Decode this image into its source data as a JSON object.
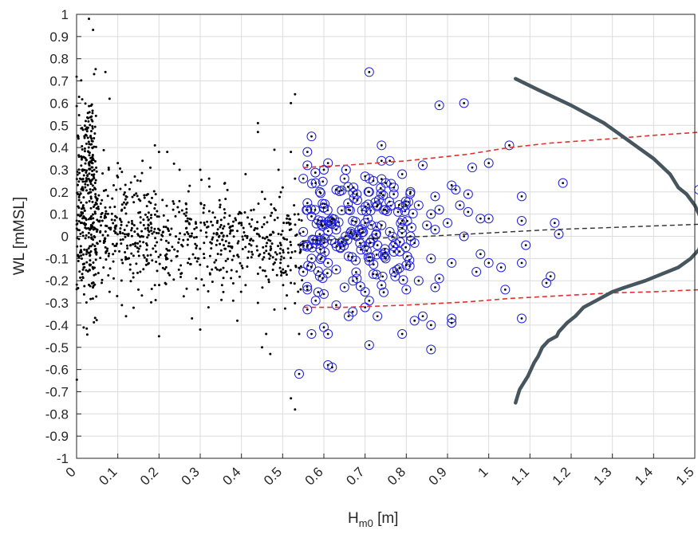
{
  "chart_data": {
    "type": "scatter",
    "title": "",
    "xlabel": {
      "main": "H",
      "subscript": "m0",
      "unit": " [m]"
    },
    "ylabel": "WL [mMSL]",
    "xlim": [
      0,
      1.5
    ],
    "ylim": [
      -1,
      1
    ],
    "grid": true,
    "legend": "none",
    "x_ticks": [
      0,
      0.1,
      0.2,
      0.3,
      0.4,
      0.5,
      0.6,
      0.7,
      0.8,
      0.9,
      1,
      1.1,
      1.2,
      1.3,
      1.4,
      1.5
    ],
    "x_tick_labels": [
      "0",
      "0.1",
      "0.2",
      "0.3",
      "0.4",
      "0.5",
      "0.6",
      "0.7",
      "0.8",
      "0.9",
      "1",
      "1.1",
      "1.2",
      "1.3",
      "1.4",
      "1.5"
    ],
    "y_ticks": [
      1,
      0.9,
      0.8,
      0.7,
      0.6,
      0.5,
      0.4,
      0.3,
      0.2,
      0.1,
      0,
      -0.1,
      -0.2,
      -0.3,
      -0.4,
      -0.5,
      -0.6,
      -0.7,
      -0.8,
      -0.9,
      -1
    ],
    "y_tick_labels": [
      "1",
      "0.9",
      "0.8",
      "0.7",
      "0.6",
      "0.5",
      "0.4",
      "0.3",
      "0.2",
      "0.1",
      "0",
      "-0.1",
      "-0.2",
      "-0.3",
      "-0.4",
      "-0.5",
      "-0.6",
      "-0.7",
      "-0.8",
      "-0.9",
      "-1"
    ],
    "colors": {
      "all_points": "#000000",
      "selected_circles": "#2020d8",
      "bounds": "#e03030",
      "trend": "#303030",
      "density": "#46555e"
    },
    "series": [
      {
        "type": "scatter",
        "role": "all observations (black dots)",
        "points": [
          [
            0.03,
            0.98
          ],
          [
            0.04,
            0.93
          ],
          [
            0.07,
            0.74
          ],
          [
            0.08,
            0.62
          ],
          [
            0.53,
            0.64
          ],
          [
            0.52,
            0.6
          ],
          [
            0.44,
            0.51
          ],
          [
            0.44,
            0.47
          ],
          [
            0.48,
            0.39
          ],
          [
            0.52,
            0.38
          ],
          [
            0.1,
            0.33
          ],
          [
            0.11,
            0.29
          ],
          [
            0.09,
            0.23
          ],
          [
            0.12,
            0.18
          ],
          [
            0.16,
            0.34
          ],
          [
            0.19,
            0.41
          ],
          [
            0.2,
            0.38
          ],
          [
            0.22,
            0.38
          ],
          [
            0.25,
            0.3
          ],
          [
            0.3,
            0.3
          ],
          [
            0.36,
            0.24
          ],
          [
            0.41,
            0.28
          ],
          [
            0.45,
            0.2
          ],
          [
            0.49,
            0.3
          ],
          [
            0.5,
            0.22
          ],
          [
            0.53,
            0.26
          ],
          [
            0.11,
            0.12
          ],
          [
            0.14,
            0.05
          ],
          [
            0.17,
            -0.06
          ],
          [
            0.21,
            0.02
          ],
          [
            0.24,
            0.09
          ],
          [
            0.27,
            -0.12
          ],
          [
            0.33,
            0.05
          ],
          [
            0.37,
            -0.03
          ],
          [
            0.43,
            0.12
          ],
          [
            0.47,
            -0.02
          ],
          [
            0.51,
            0.08
          ],
          [
            0.09,
            -0.19
          ],
          [
            0.13,
            -0.15
          ],
          [
            0.19,
            -0.22
          ],
          [
            0.23,
            -0.11
          ],
          [
            0.29,
            -0.19
          ],
          [
            0.35,
            -0.15
          ],
          [
            0.41,
            -0.22
          ],
          [
            0.46,
            -0.18
          ],
          [
            0.52,
            -0.21
          ],
          [
            0.08,
            -0.25
          ],
          [
            0.11,
            -0.31
          ],
          [
            0.15,
            -0.24
          ],
          [
            0.26,
            -0.27
          ],
          [
            0.32,
            -0.32
          ],
          [
            0.38,
            -0.29
          ],
          [
            0.44,
            -0.3
          ],
          [
            0.48,
            -0.33
          ],
          [
            0.12,
            -0.36
          ],
          [
            0.2,
            -0.45
          ],
          [
            0.28,
            -0.37
          ],
          [
            0.3,
            -0.42
          ],
          [
            0.39,
            -0.38
          ],
          [
            0.46,
            -0.44
          ],
          [
            0.47,
            -0.53
          ],
          [
            0.45,
            -0.5
          ],
          [
            0.52,
            -0.73
          ],
          [
            0.53,
            -0.78
          ],
          [
            0.54,
            -0.44
          ],
          [
            0.06,
            0.1
          ],
          [
            0.07,
            -0.05
          ],
          [
            0.18,
            0.15
          ],
          [
            0.31,
            0.14
          ],
          [
            0.4,
            0.06
          ]
        ]
      },
      {
        "type": "dense_scatter",
        "role": "dense black point cloud",
        "clusters": [
          {
            "x_range": [
              0.0,
              0.05
            ],
            "y_center": 0.12,
            "y_spread": 0.22,
            "count": 300
          },
          {
            "x_range": [
              0.02,
              0.04
            ],
            "y_center": 0.38,
            "y_spread": 0.12,
            "count": 60
          },
          {
            "x_range": [
              0.05,
              0.2
            ],
            "y_center": 0.02,
            "y_spread": 0.12,
            "count": 260
          },
          {
            "x_range": [
              0.2,
              0.4
            ],
            "y_center": -0.02,
            "y_spread": 0.11,
            "count": 240
          },
          {
            "x_range": [
              0.4,
              0.55
            ],
            "y_center": -0.04,
            "y_spread": 0.1,
            "count": 170
          }
        ]
      },
      {
        "type": "scatter",
        "role": "selected peaks (blue circles)",
        "points": [
          [
            0.71,
            0.74
          ],
          [
            0.94,
            0.6
          ],
          [
            0.88,
            0.59
          ],
          [
            0.57,
            0.45
          ],
          [
            0.74,
            0.41
          ],
          [
            0.56,
            0.38
          ],
          [
            1.05,
            0.41
          ],
          [
            0.61,
            0.33
          ],
          [
            0.74,
            0.34
          ],
          [
            0.76,
            0.34
          ],
          [
            0.56,
            0.32
          ],
          [
            0.6,
            0.3
          ],
          [
            0.79,
            0.28
          ],
          [
            0.84,
            0.32
          ],
          [
            0.96,
            0.31
          ],
          [
            1.0,
            0.33
          ],
          [
            0.55,
            0.26
          ],
          [
            0.58,
            0.24
          ],
          [
            0.65,
            0.26
          ],
          [
            0.7,
            0.27
          ],
          [
            0.72,
            0.25
          ],
          [
            0.75,
            0.24
          ],
          [
            0.91,
            0.23
          ],
          [
            0.92,
            0.21
          ],
          [
            1.18,
            0.24
          ],
          [
            1.51,
            0.21
          ],
          [
            0.59,
            0.2
          ],
          [
            0.63,
            0.21
          ],
          [
            0.68,
            0.19
          ],
          [
            0.71,
            0.2
          ],
          [
            0.77,
            0.22
          ],
          [
            0.81,
            0.2
          ],
          [
            0.87,
            0.18
          ],
          [
            0.95,
            0.19
          ],
          [
            1.08,
            0.18
          ],
          [
            0.56,
            0.15
          ],
          [
            0.6,
            0.13
          ],
          [
            0.66,
            0.12
          ],
          [
            0.73,
            0.14
          ],
          [
            0.78,
            0.11
          ],
          [
            0.83,
            0.14
          ],
          [
            0.86,
            0.1
          ],
          [
            0.88,
            0.12
          ],
          [
            0.93,
            0.14
          ],
          [
            0.57,
            0.09
          ],
          [
            0.62,
            0.08
          ],
          [
            0.67,
            0.07
          ],
          [
            0.7,
            0.06
          ],
          [
            0.74,
            0.05
          ],
          [
            0.79,
            0.07
          ],
          [
            0.85,
            0.05
          ],
          [
            0.9,
            0.06
          ],
          [
            0.95,
            0.11
          ],
          [
            0.98,
            0.08
          ],
          [
            1.0,
            0.08
          ],
          [
            1.08,
            0.07
          ],
          [
            1.16,
            0.06
          ],
          [
            0.55,
            0.02
          ],
          [
            0.59,
            0.01
          ],
          [
            0.63,
            0.03
          ],
          [
            0.68,
            0.0
          ],
          [
            0.72,
            -0.01
          ],
          [
            0.76,
            0.02
          ],
          [
            0.81,
            0.0
          ],
          [
            0.87,
            0.03
          ],
          [
            0.94,
            0.0
          ],
          [
            1.17,
            0.01
          ],
          [
            0.56,
            -0.04
          ],
          [
            0.6,
            -0.03
          ],
          [
            0.64,
            -0.05
          ],
          [
            0.69,
            -0.06
          ],
          [
            0.73,
            -0.04
          ],
          [
            0.77,
            -0.07
          ],
          [
            0.82,
            -0.03
          ],
          [
            1.09,
            -0.04
          ],
          [
            0.57,
            -0.1
          ],
          [
            0.61,
            -0.12
          ],
          [
            0.66,
            -0.09
          ],
          [
            0.71,
            -0.11
          ],
          [
            0.75,
            -0.1
          ],
          [
            0.8,
            -0.13
          ],
          [
            0.86,
            -0.1
          ],
          [
            0.91,
            -0.12
          ],
          [
            0.98,
            -0.08
          ],
          [
            1.0,
            -0.12
          ],
          [
            1.03,
            -0.14
          ],
          [
            1.08,
            -0.12
          ],
          [
            0.55,
            -0.16
          ],
          [
            0.59,
            -0.18
          ],
          [
            0.63,
            -0.15
          ],
          [
            0.68,
            -0.19
          ],
          [
            0.72,
            -0.17
          ],
          [
            0.77,
            -0.16
          ],
          [
            0.83,
            -0.2
          ],
          [
            0.88,
            -0.19
          ],
          [
            0.97,
            -0.16
          ],
          [
            1.15,
            -0.18
          ],
          [
            1.14,
            -0.21
          ],
          [
            0.56,
            -0.24
          ],
          [
            0.6,
            -0.26
          ],
          [
            0.65,
            -0.23
          ],
          [
            0.7,
            -0.25
          ],
          [
            0.74,
            -0.22
          ],
          [
            0.8,
            -0.24
          ],
          [
            0.87,
            -0.23
          ],
          [
            1.04,
            -0.24
          ],
          [
            0.58,
            -0.29
          ],
          [
            0.63,
            -0.31
          ],
          [
            0.71,
            -0.29
          ],
          [
            0.67,
            -0.34
          ],
          [
            0.7,
            -0.32
          ],
          [
            0.73,
            -0.36
          ],
          [
            0.56,
            -0.33
          ],
          [
            0.66,
            -0.36
          ],
          [
            0.79,
            -0.44
          ],
          [
            0.82,
            -0.38
          ],
          [
            0.84,
            -0.36
          ],
          [
            0.86,
            -0.4
          ],
          [
            0.91,
            -0.37
          ],
          [
            0.91,
            -0.39
          ],
          [
            1.08,
            -0.37
          ],
          [
            0.57,
            -0.44
          ],
          [
            0.6,
            -0.41
          ],
          [
            0.61,
            -0.44
          ],
          [
            0.71,
            -0.49
          ],
          [
            0.86,
            -0.51
          ],
          [
            0.54,
            -0.62
          ],
          [
            0.61,
            -0.58
          ],
          [
            0.62,
            -0.59
          ]
        ]
      },
      {
        "type": "dense_circles",
        "role": "dense blue circle cluster",
        "clusters": [
          {
            "x_range": [
              0.55,
              0.82
            ],
            "y_center": 0.01,
            "y_spread": 0.13,
            "count": 150
          }
        ]
      },
      {
        "type": "line",
        "role": "upper bound (red dashed)",
        "points": [
          [
            0.55,
            0.31
          ],
          [
            0.65,
            0.32
          ],
          [
            0.8,
            0.34
          ],
          [
            0.95,
            0.37
          ],
          [
            1.05,
            0.4
          ],
          [
            1.15,
            0.42
          ],
          [
            1.3,
            0.44
          ],
          [
            1.4,
            0.455
          ],
          [
            1.52,
            0.47
          ]
        ]
      },
      {
        "type": "line",
        "role": "lower bound (red dashed)",
        "points": [
          [
            0.55,
            -0.32
          ],
          [
            0.65,
            -0.32
          ],
          [
            0.8,
            -0.31
          ],
          [
            0.95,
            -0.295
          ],
          [
            1.05,
            -0.28
          ],
          [
            1.15,
            -0.27
          ],
          [
            1.3,
            -0.255
          ],
          [
            1.4,
            -0.25
          ],
          [
            1.52,
            -0.24
          ]
        ]
      },
      {
        "type": "line",
        "role": "trend (black dashed)",
        "points": [
          [
            0.55,
            -0.02
          ],
          [
            0.7,
            -0.01
          ],
          [
            0.85,
            0.0
          ],
          [
            1.0,
            0.015
          ],
          [
            1.15,
            0.03
          ],
          [
            1.3,
            0.04
          ],
          [
            1.52,
            0.055
          ]
        ]
      },
      {
        "type": "line",
        "role": "density curve (grey)",
        "points": [
          [
            1.065,
            0.71
          ],
          [
            1.12,
            0.66
          ],
          [
            1.2,
            0.59
          ],
          [
            1.28,
            0.51
          ],
          [
            1.34,
            0.43
          ],
          [
            1.4,
            0.35
          ],
          [
            1.44,
            0.28
          ],
          [
            1.46,
            0.22
          ],
          [
            1.48,
            0.19
          ],
          [
            1.5,
            0.14
          ],
          [
            1.515,
            0.08
          ],
          [
            1.52,
            0.03
          ],
          [
            1.52,
            -0.01
          ],
          [
            1.51,
            -0.06
          ],
          [
            1.49,
            -0.1
          ],
          [
            1.46,
            -0.14
          ],
          [
            1.42,
            -0.17
          ],
          [
            1.38,
            -0.2
          ],
          [
            1.33,
            -0.23
          ],
          [
            1.3,
            -0.25
          ],
          [
            1.26,
            -0.29
          ],
          [
            1.23,
            -0.32
          ],
          [
            1.21,
            -0.36
          ],
          [
            1.19,
            -0.39
          ],
          [
            1.17,
            -0.43
          ],
          [
            1.165,
            -0.45
          ],
          [
            1.145,
            -0.47
          ],
          [
            1.13,
            -0.5
          ],
          [
            1.12,
            -0.54
          ],
          [
            1.11,
            -0.57
          ],
          [
            1.1,
            -0.61
          ],
          [
            1.095,
            -0.63
          ],
          [
            1.085,
            -0.66
          ],
          [
            1.075,
            -0.69
          ],
          [
            1.07,
            -0.72
          ],
          [
            1.065,
            -0.75
          ]
        ]
      }
    ]
  }
}
